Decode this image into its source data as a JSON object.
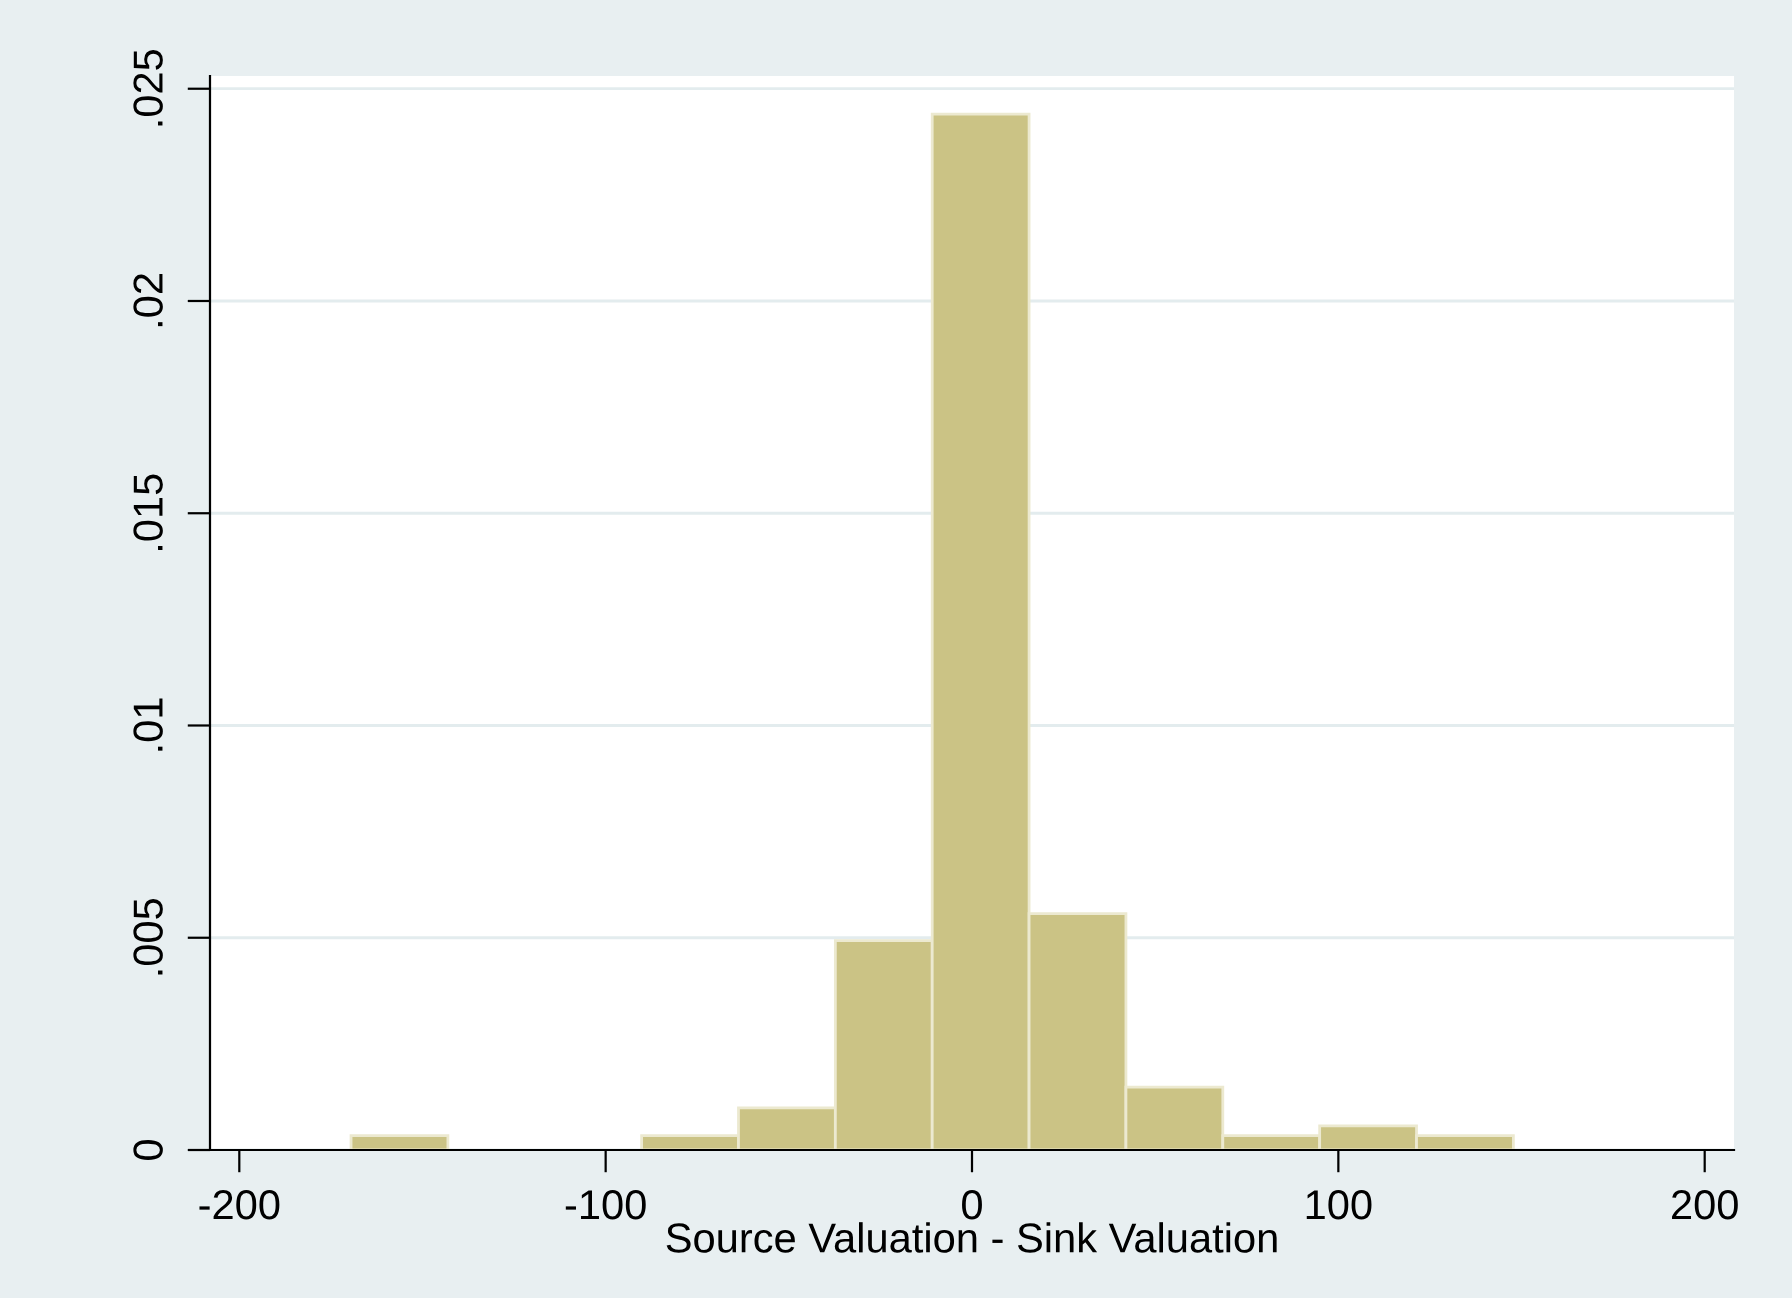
{
  "chart_data": {
    "type": "histogram",
    "xlabel": "Source Valuation - Sink Valuation",
    "bins": [
      -169.5,
      -143.06,
      -116.62,
      -90.18,
      -63.74,
      -37.3,
      -10.86,
      15.58,
      42.02,
      68.46,
      94.9,
      121.34,
      147.78
    ],
    "values": [
      0.00034,
      0,
      0,
      0.00034,
      0.00099,
      0.00493,
      0.0244,
      0.00557,
      0.00148,
      0.00034,
      0.00057,
      0.00034
    ],
    "color": "#cbc385",
    "xlim": [
      -208,
      208
    ],
    "xticks": [
      -200,
      -100,
      0,
      100,
      200
    ],
    "ylim": [
      0,
      0.0253
    ],
    "yticks": [
      0,
      {
        "value": 0.005,
        "label": ".005"
      },
      {
        "value": 0.01,
        "label": ".01"
      },
      {
        "value": 0.015,
        "label": ".015"
      },
      {
        "value": 0.02,
        "label": ".02"
      },
      {
        "value": 0.025,
        "label": ".025"
      }
    ],
    "grid": "y"
  }
}
